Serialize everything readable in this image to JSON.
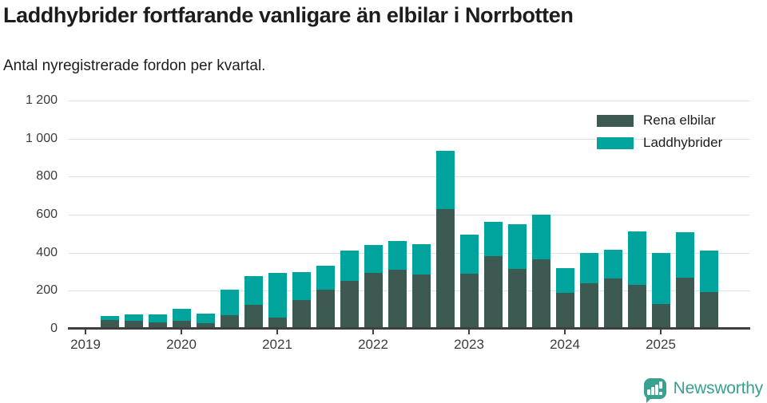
{
  "chart_data": {
    "type": "bar",
    "stacked": true,
    "title": "Laddhybrider fortfarande vanligare än elbilar i Norrbotten",
    "subtitle": "Antal nyregistrerade fordon per kvartal.",
    "categories": [
      "2019 Q2",
      "2019 Q3",
      "2019 Q4",
      "2020 Q1",
      "2020 Q2",
      "2020 Q3",
      "2020 Q4",
      "2021 Q1",
      "2021 Q2",
      "2021 Q3",
      "2021 Q4",
      "2022 Q1",
      "2022 Q2",
      "2022 Q3",
      "2022 Q4",
      "2023 Q1",
      "2023 Q2",
      "2023 Q3",
      "2023 Q4",
      "2024 Q1",
      "2024 Q2",
      "2024 Q3",
      "2024 Q4",
      "2025 Q1",
      "2025 Q2",
      "2025 Q3"
    ],
    "series": [
      {
        "name": "Rena elbilar",
        "color": "#3d5a52",
        "values": [
          45,
          40,
          35,
          40,
          30,
          70,
          125,
          60,
          150,
          205,
          250,
          295,
          310,
          285,
          630,
          290,
          380,
          315,
          365,
          190,
          240,
          265,
          230,
          130,
          270,
          195
        ]
      },
      {
        "name": "Laddhybrider",
        "color": "#00a49c",
        "values": [
          20,
          35,
          40,
          65,
          50,
          135,
          150,
          235,
          145,
          125,
          160,
          145,
          150,
          160,
          305,
          205,
          180,
          235,
          235,
          130,
          160,
          150,
          280,
          270,
          240,
          220
        ]
      }
    ],
    "ylim": [
      0,
      1200
    ],
    "yticks": [
      0,
      200,
      400,
      600,
      800,
      1000,
      1200
    ],
    "ytick_labels": [
      "0",
      "200",
      "400",
      "600",
      "800",
      "1 000",
      "1 200"
    ],
    "xtick_labels": [
      "2019",
      "2020",
      "2021",
      "2022",
      "2023",
      "2024",
      "2025"
    ],
    "grid": true,
    "legend_position": "top-right"
  },
  "footer": {
    "brand": "Newsworthy",
    "brand_color": "#38a18f"
  }
}
